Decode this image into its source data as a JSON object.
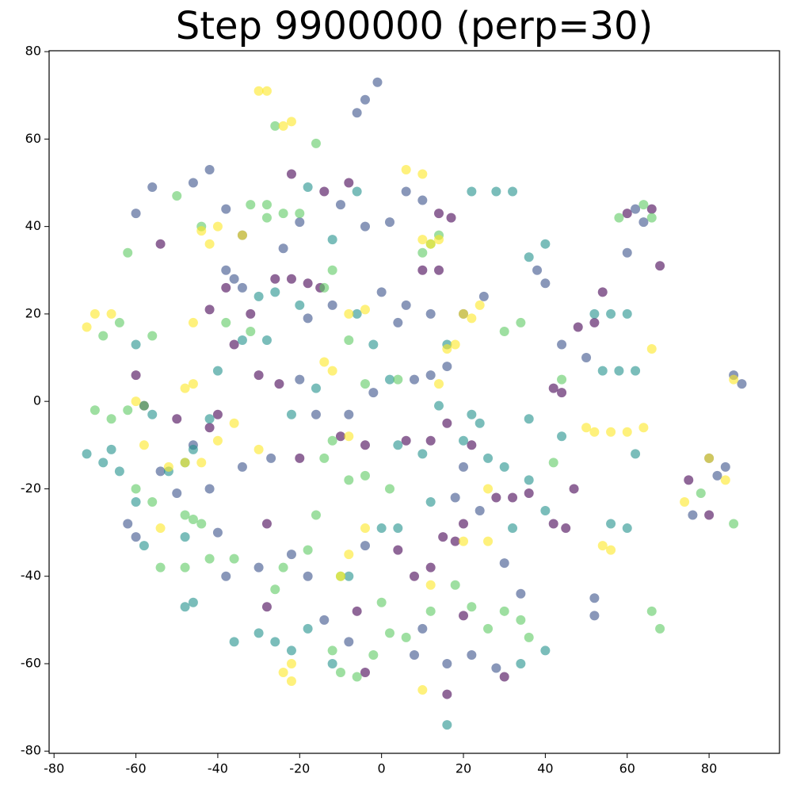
{
  "chart_data": {
    "type": "scatter",
    "title": "Step 9900000 (perp=30)",
    "xlim": [
      -81.2,
      97.2
    ],
    "ylim": [
      -80.5,
      80.2
    ],
    "xticks": [
      -80,
      -60,
      -40,
      -20,
      0,
      20,
      40,
      60,
      80
    ],
    "yticks": [
      -80,
      -60,
      -40,
      -20,
      0,
      20,
      40,
      60,
      80
    ],
    "grid": false,
    "series": [
      {
        "color": "#440154",
        "x": [
          -26,
          -22,
          -18,
          -15,
          -32,
          -36,
          -30,
          -25,
          -42,
          -40,
          -20,
          -10,
          -4,
          6,
          12,
          10,
          14,
          14,
          17,
          8,
          12,
          15,
          18,
          20,
          28,
          32,
          36,
          42,
          45,
          47,
          48,
          52,
          54,
          42,
          44,
          60,
          66,
          68,
          75,
          80,
          -28,
          -4,
          -6,
          20,
          -60,
          -58,
          -54,
          -42,
          -38,
          -28,
          -50,
          -14,
          -22,
          -8,
          4,
          16,
          30,
          22,
          16
        ],
        "y": [
          28,
          28,
          27,
          26,
          20,
          13,
          6,
          4,
          -6,
          -3,
          -13,
          -8,
          -10,
          -9,
          -9,
          30,
          30,
          43,
          42,
          -40,
          -38,
          -31,
          -32,
          -28,
          -22,
          -22,
          -21,
          -28,
          -29,
          -20,
          17,
          18,
          25,
          3,
          2,
          43,
          44,
          31,
          -18,
          -26,
          -47,
          -62,
          -48,
          -49,
          6,
          -1,
          36,
          21,
          26,
          -28,
          -4,
          48,
          52,
          50,
          -34,
          -67,
          -63,
          -10,
          -5
        ]
      },
      {
        "color": "#3b528b",
        "x": [
          -60,
          -56,
          -46,
          -42,
          -38,
          -34,
          -38,
          -36,
          -34,
          -46,
          -42,
          -34,
          -54,
          -60,
          -62,
          -50,
          -38,
          -30,
          -22,
          -18,
          -14,
          -8,
          -4,
          8,
          10,
          16,
          22,
          28,
          30,
          34,
          -6,
          -4,
          -1,
          6,
          10,
          16,
          12,
          8,
          6,
          4,
          -12,
          -18,
          -40,
          -27,
          0,
          -10,
          -4,
          2,
          18,
          20,
          24,
          38,
          40,
          44,
          50,
          52,
          52,
          60,
          62,
          64,
          80,
          82,
          88,
          86,
          76,
          84,
          12,
          20,
          25,
          -24,
          -20,
          -2,
          -8,
          -16,
          -20
        ],
        "y": [
          43,
          49,
          50,
          53,
          44,
          38,
          30,
          28,
          26,
          -10,
          -20,
          -15,
          -16,
          -31,
          -28,
          -21,
          -40,
          -38,
          -35,
          -40,
          -50,
          -55,
          -33,
          -58,
          -52,
          -60,
          -58,
          -61,
          -37,
          -44,
          66,
          69,
          73,
          48,
          46,
          8,
          6,
          5,
          22,
          18,
          22,
          19,
          -30,
          -13,
          25,
          45,
          40,
          41,
          -22,
          -15,
          -25,
          30,
          27,
          13,
          10,
          -45,
          -49,
          34,
          44,
          41,
          -13,
          -17,
          4,
          6,
          -26,
          -15,
          20,
          20,
          24,
          35,
          41,
          2,
          -3,
          -3,
          5
        ]
      },
      {
        "color": "#21918c",
        "x": [
          -72,
          -68,
          -64,
          -60,
          -58,
          -48,
          -48,
          -46,
          -56,
          -60,
          -42,
          -46,
          -30,
          -26,
          -22,
          -18,
          -12,
          -8,
          0,
          4,
          12,
          10,
          26,
          30,
          36,
          40,
          56,
          60,
          62,
          54,
          58,
          62,
          52,
          56,
          60,
          40,
          36,
          32,
          28,
          22,
          -6,
          -18,
          -12,
          -30,
          -26,
          -20,
          -28,
          -34,
          -16,
          -22,
          14,
          20,
          24,
          36,
          44,
          32,
          -36,
          34,
          40,
          4,
          16,
          16,
          22,
          -52,
          -40,
          -48,
          -66,
          -6,
          -2,
          2
        ],
        "y": [
          -12,
          -14,
          -16,
          -23,
          -33,
          -31,
          -47,
          -46,
          -3,
          13,
          -4,
          -11,
          -53,
          -55,
          -57,
          -52,
          -60,
          -40,
          -29,
          -29,
          -23,
          -12,
          -13,
          -15,
          -18,
          -25,
          -28,
          -29,
          -12,
          7,
          7,
          7,
          20,
          20,
          20,
          36,
          33,
          48,
          48,
          48,
          48,
          49,
          37,
          24,
          25,
          22,
          14,
          14,
          3,
          -3,
          -1,
          -9,
          -5,
          -4,
          -8,
          -29,
          -55,
          -60,
          -57,
          -10,
          13,
          -74,
          -3,
          -16,
          7,
          -14,
          -11,
          20,
          13,
          5
        ]
      },
      {
        "color": "#5ec962",
        "x": [
          -70,
          -66,
          -62,
          -58,
          -48,
          -46,
          -56,
          -54,
          -60,
          -48,
          -42,
          -36,
          -26,
          -24,
          -18,
          -16,
          -10,
          -12,
          -10,
          -6,
          -2,
          2,
          6,
          12,
          18,
          22,
          26,
          30,
          34,
          36,
          -14,
          -12,
          -8,
          -4,
          2,
          -28,
          -24,
          -20,
          -28,
          -32,
          -26,
          -16,
          -12,
          -14,
          -8,
          -4,
          4,
          12,
          14,
          10,
          -50,
          -44,
          -62,
          -56,
          -64,
          -68,
          -38,
          -32,
          42,
          44,
          34,
          30,
          58,
          64,
          66,
          86,
          78,
          66,
          68,
          0,
          -44
        ],
        "y": [
          -2,
          -4,
          -2,
          -1,
          -26,
          -27,
          -23,
          -38,
          -20,
          -38,
          -36,
          -36,
          -43,
          -38,
          -34,
          -26,
          -40,
          -57,
          -62,
          -63,
          -58,
          -53,
          -54,
          -48,
          -42,
          -47,
          -52,
          -48,
          -50,
          -54,
          -13,
          -9,
          -18,
          -17,
          -20,
          42,
          43,
          43,
          45,
          45,
          63,
          59,
          30,
          26,
          14,
          4,
          5,
          36,
          38,
          34,
          47,
          40,
          34,
          15,
          18,
          15,
          18,
          16,
          -14,
          5,
          18,
          16,
          42,
          45,
          42,
          -28,
          -21,
          -48,
          -52,
          -46,
          -28
        ]
      },
      {
        "color": "#fde725",
        "x": [
          -30,
          -28,
          -24,
          -22,
          6,
          10,
          12,
          10,
          14,
          -58,
          -52,
          -48,
          -44,
          -48,
          -46,
          -40,
          -36,
          -30,
          -24,
          -22,
          -22,
          -14,
          -12,
          -8,
          -4,
          16,
          18,
          20,
          22,
          24,
          50,
          52,
          56,
          60,
          64,
          -54,
          -60,
          -66,
          -70,
          -72,
          -44,
          -40,
          -42,
          -34,
          -10,
          -4,
          -8,
          26,
          12,
          10,
          54,
          56,
          66,
          74,
          80,
          84,
          86,
          -46,
          -8,
          20,
          26,
          14
        ],
        "y": [
          71,
          71,
          63,
          64,
          53,
          52,
          36,
          37,
          37,
          -10,
          -15,
          -14,
          -14,
          3,
          4,
          -9,
          -5,
          -11,
          -62,
          -64,
          -60,
          9,
          7,
          20,
          21,
          12,
          13,
          20,
          19,
          22,
          -6,
          -7,
          -7,
          -7,
          -6,
          -29,
          0,
          20,
          20,
          17,
          39,
          40,
          36,
          38,
          -40,
          -29,
          -35,
          -32,
          -42,
          -66,
          -33,
          -34,
          12,
          -23,
          -13,
          -18,
          5,
          18,
          -8,
          -32,
          -20,
          4
        ]
      }
    ]
  }
}
